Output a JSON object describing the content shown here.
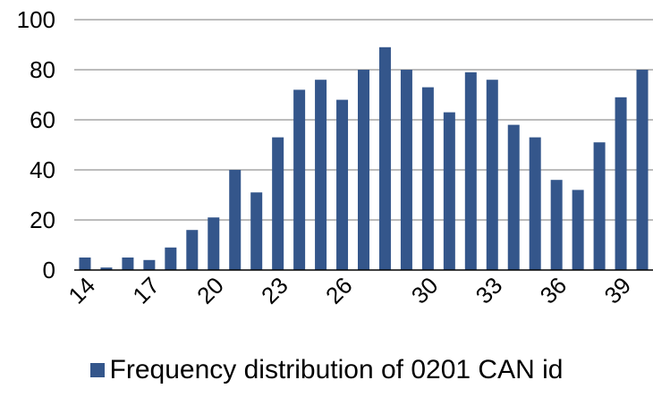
{
  "chart_data": {
    "type": "bar",
    "x": [
      14,
      15,
      16,
      17,
      18,
      19,
      20,
      21,
      22,
      23,
      24,
      25,
      26,
      27,
      28,
      29,
      30,
      31,
      32,
      33,
      34,
      35,
      36,
      37,
      38,
      39,
      40
    ],
    "values": [
      5,
      1,
      5,
      4,
      9,
      16,
      21,
      40,
      31,
      53,
      72,
      76,
      68,
      80,
      89,
      80,
      73,
      63,
      79,
      76,
      58,
      53,
      36,
      32,
      51,
      69,
      80
    ],
    "x_tick_labels": [
      "14",
      "17",
      "20",
      "23",
      "26",
      "30",
      "33",
      "36",
      "39"
    ],
    "y_ticks": [
      0,
      20,
      40,
      60,
      80,
      100
    ],
    "ylim": [
      0,
      100
    ],
    "grid": true,
    "legend_position": "bottom",
    "series": [
      {
        "name": "Frequency distribution of 0201 CAN id",
        "color": "#34568B"
      }
    ]
  },
  "legend": {
    "label": "Frequency distribution of 0201 CAN id"
  }
}
